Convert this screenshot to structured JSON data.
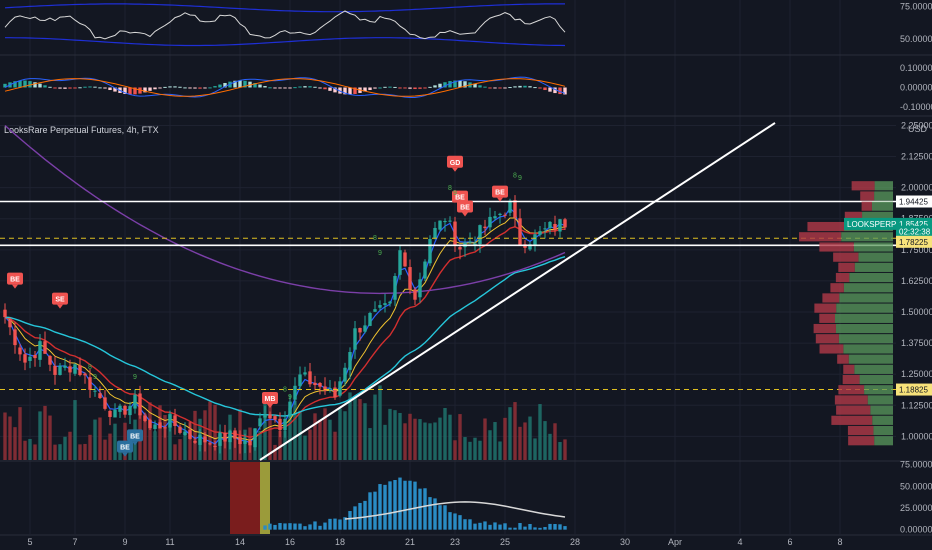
{
  "symbol_title": "LooksRare Perpetual Futures, 4h, FTX",
  "currency": "USD",
  "colors": {
    "bg": "#131722",
    "grid": "#1e2230",
    "up": "#26a69a",
    "down": "#ef5350",
    "ema_fast": "#2962ff",
    "ema_mid": "#f0c330",
    "ema_red": "#d32f2f",
    "ema_teal": "#26c6da",
    "ema_purple": "#7b3fa8",
    "trend": "#ffffff",
    "level": "#ffffff",
    "dashed": "#e0c020",
    "vol_up": "#1f6e68",
    "vol_down": "#8c2f36",
    "badge": "#ef5350",
    "badge_blue": "#2a6f9e",
    "vp_green": "#5b9b5e",
    "vp_red": "#b23a48"
  },
  "chart_data": [
    {
      "type": "line",
      "name": "oscillator",
      "ticks": [
        "75.00000",
        "50.00000"
      ],
      "ylim": [
        40,
        80
      ]
    },
    {
      "type": "bar",
      "name": "macd",
      "ticks": [
        "0.10000",
        "0.00000",
        "-0.10000"
      ],
      "ylim": [
        -0.14,
        0.15
      ]
    },
    {
      "type": "candlestick",
      "name": "price",
      "title": "LooksRare Perpetual Futures, 4h, FTX",
      "unit": "USD",
      "ylim": [
        0.905,
        2.28
      ],
      "y_ticks": [
        "2.25000",
        "2.12500",
        "2.00000",
        "1.87500",
        "1.75000",
        "1.62500",
        "1.50000",
        "1.37500",
        "1.25000",
        "1.12500",
        "1.00000"
      ],
      "price_labels": [
        {
          "text": "1.94425",
          "value": 1.94425,
          "style": "white"
        },
        {
          "text": "1.85425",
          "value": 1.85425,
          "style": "teal"
        },
        {
          "text": "02:32:38",
          "value": 1.823,
          "style": "teal"
        },
        {
          "text": "LOOKSPERP",
          "value": 1.85425,
          "style": "tealtag"
        },
        {
          "text": "1.78225",
          "value": 1.78225,
          "style": "yellow"
        },
        {
          "text": "1.18825",
          "value": 1.18825,
          "style": "yellow"
        }
      ],
      "levels": [
        1.94425,
        1.7682
      ],
      "dashed_levels": [
        1.7965,
        1.1882
      ],
      "key_closes": [
        {
          "t": 0,
          "v": 1.48
        },
        {
          "t": 4,
          "v": 1.3
        },
        {
          "t": 7,
          "v": 1.36
        },
        {
          "t": 10,
          "v": 1.26
        },
        {
          "t": 14,
          "v": 1.29
        },
        {
          "t": 18,
          "v": 1.18
        },
        {
          "t": 22,
          "v": 1.08
        },
        {
          "t": 26,
          "v": 1.14
        },
        {
          "t": 29,
          "v": 1.03
        },
        {
          "t": 33,
          "v": 1.06
        },
        {
          "t": 37,
          "v": 1.0
        },
        {
          "t": 41,
          "v": 0.98
        },
        {
          "t": 45,
          "v": 1.0
        },
        {
          "t": 49,
          "v": 0.97
        },
        {
          "t": 52,
          "v": 1.11
        },
        {
          "t": 55,
          "v": 1.05
        },
        {
          "t": 59,
          "v": 1.24
        },
        {
          "t": 63,
          "v": 1.2
        },
        {
          "t": 66,
          "v": 1.16
        },
        {
          "t": 70,
          "v": 1.42
        },
        {
          "t": 73,
          "v": 1.48
        },
        {
          "t": 77,
          "v": 1.52
        },
        {
          "t": 79,
          "v": 1.74
        },
        {
          "t": 82,
          "v": 1.56
        },
        {
          "t": 85,
          "v": 1.8
        },
        {
          "t": 88,
          "v": 1.88
        },
        {
          "t": 91,
          "v": 1.76
        },
        {
          "t": 94,
          "v": 1.8
        },
        {
          "t": 98,
          "v": 1.88
        },
        {
          "t": 101,
          "v": 1.93
        },
        {
          "t": 103,
          "v": 1.78
        },
        {
          "t": 106,
          "v": 1.8
        },
        {
          "t": 109,
          "v": 1.84
        },
        {
          "t": 112,
          "v": 1.86
        }
      ],
      "badges": [
        {
          "text": "BE",
          "t": 2,
          "v": 1.63,
          "color": "red"
        },
        {
          "text": "SE",
          "t": 11,
          "v": 1.55,
          "color": "red"
        },
        {
          "text": "BE",
          "t": 26,
          "v": 1.0,
          "color": "blue"
        },
        {
          "text": "BE",
          "t": 24,
          "v": 0.955,
          "color": "blue"
        },
        {
          "text": "MB",
          "t": 53,
          "v": 1.15,
          "color": "red"
        },
        {
          "text": "GD",
          "t": 90,
          "v": 2.1,
          "color": "red"
        },
        {
          "text": "BE",
          "t": 91,
          "v": 1.96,
          "color": "red"
        },
        {
          "text": "BE",
          "t": 92,
          "v": 1.92,
          "color": "red"
        },
        {
          "text": "BE",
          "t": 99,
          "v": 1.98,
          "color": "red"
        }
      ],
      "seq_labels": [
        {
          "text": "8",
          "t": 74,
          "v": 1.79
        },
        {
          "text": "9",
          "t": 75,
          "v": 1.73
        },
        {
          "text": "8",
          "t": 89,
          "v": 1.99
        },
        {
          "text": "9",
          "t": 90,
          "v": 1.97
        },
        {
          "text": "8",
          "t": 102,
          "v": 2.04
        },
        {
          "text": "9",
          "t": 103,
          "v": 2.03
        },
        {
          "text": "8",
          "t": 17,
          "v": 1.27
        },
        {
          "text": "9",
          "t": 18,
          "v": 1.23
        },
        {
          "text": "9",
          "t": 26,
          "v": 1.23
        },
        {
          "text": "8",
          "t": 56,
          "v": 1.18
        },
        {
          "text": "9",
          "t": 57,
          "v": 1.15
        }
      ]
    },
    {
      "type": "bar",
      "name": "lower-indicator",
      "ticks": [
        "75.00000",
        "50.00000",
        "25.00000",
        "0.00000"
      ],
      "ylim": [
        -5,
        78
      ]
    }
  ],
  "x_ticks": [
    {
      "label": "5",
      "t": 5
    },
    {
      "label": "7",
      "t": 14
    },
    {
      "label": "9",
      "t": 24
    },
    {
      "label": "11",
      "t": 33
    },
    {
      "label": "14",
      "t": 47
    },
    {
      "label": "16",
      "t": 57
    },
    {
      "label": "18",
      "t": 67
    },
    {
      "label": "21",
      "t": 81
    },
    {
      "label": "23",
      "t": 90
    },
    {
      "label": "25",
      "t": 100
    },
    {
      "label": "28",
      "t": 114
    },
    {
      "label": "30",
      "t": 124
    },
    {
      "label": "Apr",
      "t": 134
    },
    {
      "label": "4",
      "t": 147
    },
    {
      "label": "6",
      "t": 157
    },
    {
      "label": "8",
      "t": 167
    }
  ]
}
